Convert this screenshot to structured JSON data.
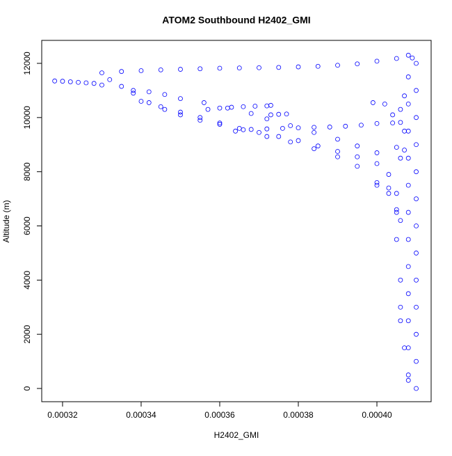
{
  "chart_data": {
    "type": "scatter",
    "title": "ATOM2 Southbound H2402_GMI",
    "x_label": "H2402_GMI",
    "y_label": "Altitude (m)",
    "color": "#0000ff",
    "xlim": [
      0.0003147,
      0.0004138
    ],
    "ylim": [
      -488,
      12848
    ],
    "xticks": [
      0.00032,
      0.00034,
      0.00036,
      0.00038,
      {
        "value": 0.0004,
        "label": "0.00040"
      }
    ],
    "yticks": [
      0,
      2000,
      4000,
      6000,
      8000,
      10000,
      12000
    ],
    "x": [
      0.00033,
      0.000335,
      0.00034,
      0.000345,
      0.00035,
      0.000355,
      0.00036,
      0.000365,
      0.00037,
      0.000375,
      0.00038,
      0.000385,
      0.00039,
      0.000395,
      0.0004,
      0.000405,
      0.000408,
      0.000409,
      0.00041,
      0.000318,
      0.00032,
      0.000322,
      0.000324,
      0.000326,
      0.000328,
      0.00033,
      0.000332,
      0.000335,
      0.000338,
      0.000342,
      0.000346,
      0.00035,
      0.000355,
      0.00036,
      0.000365,
      0.00037,
      0.000375,
      0.00038,
      0.000385,
      0.00039,
      0.000395,
      0.0004,
      0.000403,
      0.000405,
      0.000406,
      0.000338,
      0.000342,
      0.000346,
      0.00035,
      0.000356,
      0.000362,
      0.000368,
      0.000372,
      0.000378,
      0.000384,
      0.00039,
      0.000395,
      0.0004,
      0.00034,
      0.000345,
      0.00035,
      0.000355,
      0.00036,
      0.000366,
      0.000372,
      0.000378,
      0.000384,
      0.00039,
      0.000395,
      0.0004,
      0.000403,
      0.000405,
      0.000357,
      0.00036,
      0.000363,
      0.000366,
      0.000369,
      0.000372,
      0.000373,
      0.000373,
      0.000375,
      0.000377,
      0.000364,
      0.000368,
      0.000372,
      0.000376,
      0.00038,
      0.000384,
      0.000388,
      0.000392,
      0.000396,
      0.0004,
      0.000404,
      0.000406,
      0.000399,
      0.000402,
      0.000404,
      0.000406,
      0.000405,
      0.000407,
      0.0004,
      0.000403,
      0.000408,
      0.000408,
      0.000408,
      0.000408,
      0.000408,
      0.000408,
      0.000408,
      0.000408,
      0.000408,
      0.000408,
      0.000408,
      0.000408,
      0.00041,
      0.00041,
      0.00041,
      0.00041,
      0.00041,
      0.00041,
      0.00041,
      0.00041,
      0.00041,
      0.00041,
      0.00041,
      0.00041,
      0.000406,
      0.000406,
      0.000405,
      0.000405,
      0.000406,
      0.000407,
      0.000407,
      0.000406,
      0.000407,
      0.000408
    ],
    "values": [
      11650,
      11700,
      11730,
      11760,
      11780,
      11800,
      11820,
      11830,
      11840,
      11850,
      11870,
      11890,
      11930,
      11980,
      12080,
      12180,
      12300,
      12200,
      12000,
      11350,
      11340,
      11320,
      11300,
      11280,
      11260,
      11200,
      11400,
      11150,
      10900,
      10550,
      10300,
      10100,
      9900,
      9750,
      9600,
      9450,
      9300,
      9150,
      8950,
      8750,
      8550,
      8300,
      7900,
      7200,
      6200,
      11000,
      10950,
      10850,
      10700,
      10550,
      10350,
      10150,
      9950,
      9700,
      9450,
      9200,
      8950,
      8700,
      10600,
      10400,
      10200,
      10000,
      9800,
      9550,
      9300,
      9100,
      8850,
      8550,
      8200,
      7600,
      7200,
      6600,
      10300,
      10350,
      10380,
      10400,
      10420,
      10430,
      10450,
      10100,
      10120,
      10130,
      9500,
      9560,
      9580,
      9600,
      9620,
      9640,
      9650,
      9680,
      9720,
      9780,
      9800,
      9820,
      10550,
      10500,
      10100,
      10300,
      8900,
      8800,
      7500,
      7400,
      500,
      1500,
      2500,
      3500,
      4500,
      5500,
      6500,
      7500,
      8500,
      9500,
      10500,
      11500,
      0,
      1000,
      2000,
      3000,
      4000,
      5000,
      6000,
      7000,
      8000,
      9000,
      10000,
      11000,
      3000,
      2500,
      6500,
      5500,
      4000,
      1500,
      9500,
      8500,
      10800,
      300
    ]
  }
}
